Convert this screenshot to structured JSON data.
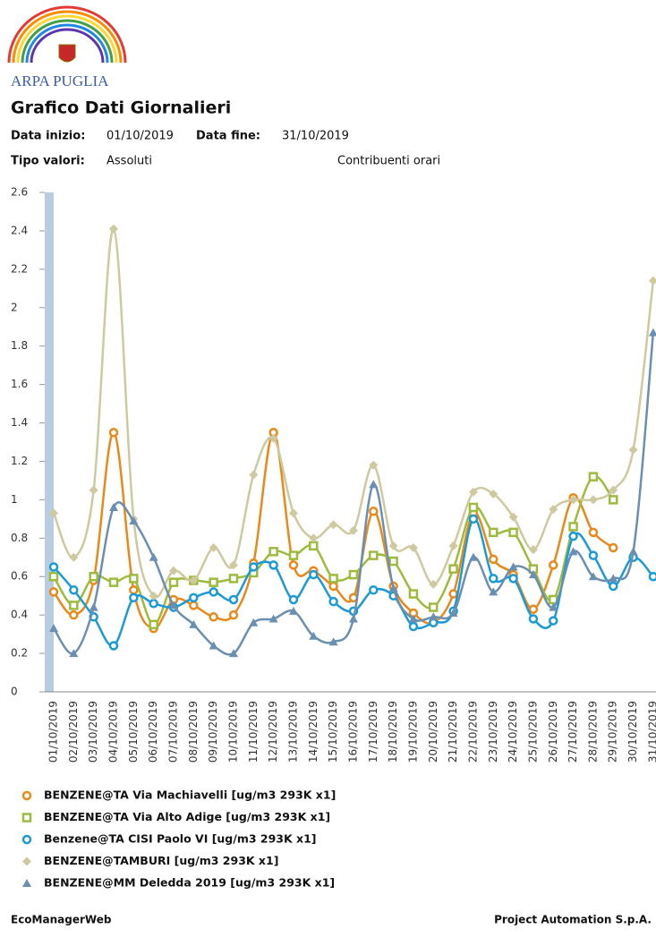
{
  "header": {
    "brand": "ARPA PUGLIA",
    "title": "Grafico Dati Giornalieri",
    "start_label": "Data inizio:",
    "start_value": "01/10/2019",
    "end_label": "Data fine:",
    "end_value": "31/10/2019",
    "type_label": "Tipo valori:",
    "type_value": "Assoluti",
    "extra": "Contribuenti orari"
  },
  "chart_data": {
    "type": "line",
    "categories": [
      "01/10/2019",
      "02/10/2019",
      "03/10/2019",
      "04/10/2019",
      "05/10/2019",
      "06/10/2019",
      "07/10/2019",
      "08/10/2019",
      "09/10/2019",
      "10/10/2019",
      "11/10/2019",
      "12/10/2019",
      "13/10/2019",
      "14/10/2019",
      "15/10/2019",
      "16/10/2019",
      "17/10/2019",
      "18/10/2019",
      "19/10/2019",
      "20/10/2019",
      "21/10/2019",
      "22/10/2019",
      "23/10/2019",
      "24/10/2019",
      "25/10/2019",
      "26/10/2019",
      "27/10/2019",
      "28/10/2019",
      "29/10/2019",
      "30/10/2019",
      "31/10/2019"
    ],
    "ylim": [
      0,
      2.6
    ],
    "yticks": [
      0,
      0.2,
      0.4,
      0.6,
      0.8,
      1,
      1.2,
      1.4,
      1.6,
      1.8,
      2,
      2.2,
      2.4,
      2.6
    ],
    "series": [
      {
        "name": "BENZENE@TA Via Machiavelli [ug/m3 293K x1]",
        "color": "#e8891a",
        "marker": "circle",
        "values": [
          0.52,
          0.4,
          0.58,
          1.35,
          0.53,
          0.33,
          0.48,
          0.45,
          0.39,
          0.4,
          0.67,
          1.35,
          0.66,
          0.63,
          0.55,
          0.49,
          0.94,
          0.55,
          0.41,
          0.36,
          0.51,
          0.93,
          0.69,
          0.61,
          0.43,
          0.66,
          1.01,
          0.83,
          0.75,
          null,
          null
        ]
      },
      {
        "name": "BENZENE@TA Via Alto Adige [ug/m3 293K x1]",
        "color": "#9dbb3d",
        "marker": "square",
        "values": [
          0.6,
          0.45,
          0.6,
          0.57,
          0.59,
          0.35,
          0.57,
          0.58,
          0.57,
          0.59,
          0.62,
          0.73,
          0.71,
          0.76,
          0.59,
          0.61,
          0.71,
          0.68,
          0.51,
          0.44,
          0.64,
          0.96,
          0.83,
          0.83,
          0.64,
          0.48,
          0.86,
          1.12,
          1.0,
          null,
          null
        ]
      },
      {
        "name": "Benzene@TA CISI Paolo VI [ug/m3 293K x1]",
        "color": "#1b9ad6",
        "marker": "circle",
        "values": [
          0.65,
          0.53,
          0.39,
          0.24,
          0.49,
          0.46,
          0.44,
          0.49,
          0.52,
          0.48,
          0.65,
          0.66,
          0.48,
          0.61,
          0.47,
          0.42,
          0.53,
          0.5,
          0.34,
          0.36,
          0.42,
          0.9,
          0.59,
          0.59,
          0.38,
          0.37,
          0.81,
          0.71,
          0.55,
          0.7,
          0.6
        ]
      },
      {
        "name": "BENZENE@TAMBURI [ug/m3 293K x1]",
        "color": "#cfc9a0",
        "marker": "diamond",
        "values": [
          0.93,
          0.7,
          1.05,
          2.41,
          0.9,
          0.5,
          0.63,
          0.58,
          0.75,
          0.66,
          1.13,
          1.32,
          0.93,
          0.8,
          0.87,
          0.84,
          1.18,
          0.76,
          0.75,
          0.56,
          0.76,
          1.04,
          1.03,
          0.91,
          0.74,
          0.95,
          1.0,
          1.0,
          1.05,
          1.26,
          2.14
        ]
      },
      {
        "name": "BENZENE@MM Deledda 2019 [ug/m3 293K x1]",
        "color": "#6b8fb0",
        "marker": "triangle",
        "values": [
          0.33,
          0.2,
          0.44,
          0.96,
          0.89,
          0.7,
          0.45,
          0.35,
          0.24,
          0.2,
          0.36,
          0.38,
          0.42,
          0.29,
          0.26,
          0.38,
          1.08,
          0.54,
          0.38,
          0.39,
          0.41,
          0.7,
          0.52,
          0.65,
          0.61,
          0.44,
          0.73,
          0.6,
          0.59,
          0.73,
          1.87
        ]
      }
    ]
  },
  "footer": {
    "left": "EcoManagerWeb",
    "right": "Project Automation S.p.A."
  }
}
